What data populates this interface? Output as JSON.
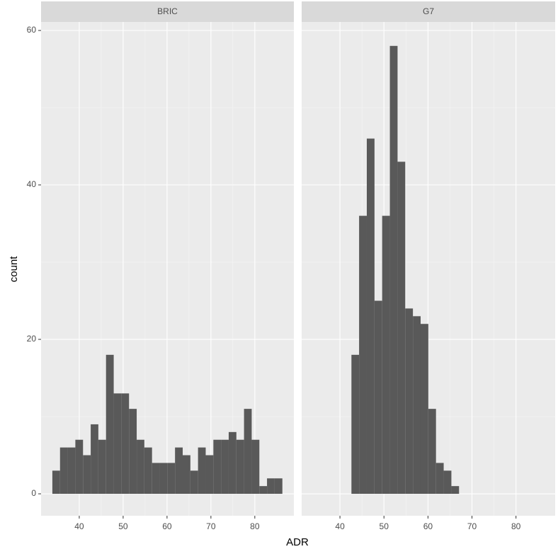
{
  "chart_data": [
    {
      "type": "histogram",
      "title": "BRIC",
      "xlabel": "ADR",
      "ylabel": "count",
      "color": "#595959",
      "grid": true,
      "bins": [
        33.87,
        35.62,
        37.36,
        39.11,
        40.86,
        42.61,
        44.35,
        46.1,
        47.85,
        49.59,
        51.34,
        53.09,
        54.83,
        56.58,
        58.33,
        60.08,
        61.82,
        63.57,
        65.32,
        67.06,
        68.81,
        70.56,
        72.3,
        74.05,
        75.8,
        77.54,
        79.29,
        81.04,
        82.78,
        84.53,
        86.28
      ],
      "values": [
        3,
        6,
        6,
        7,
        5,
        9,
        7,
        18,
        13,
        13,
        11,
        7,
        6,
        4,
        4,
        4,
        6,
        5,
        3,
        6,
        5,
        7,
        7,
        8,
        7,
        11,
        7,
        1,
        2,
        2
      ],
      "xlim": [
        31.3,
        88.9
      ],
      "xticks": [
        40,
        50,
        60,
        70,
        80
      ],
      "ylim": [
        -2.84,
        61.1
      ],
      "yticks": [
        0,
        20,
        40,
        60
      ]
    },
    {
      "type": "histogram",
      "title": "G7",
      "color": "#595959",
      "grid": true,
      "bins": [
        42.61,
        44.35,
        46.1,
        47.85,
        49.59,
        51.34,
        53.09,
        54.83,
        56.58,
        58.33,
        60.08,
        61.82,
        63.57,
        65.32,
        67.06
      ],
      "values": [
        18,
        36,
        46,
        25,
        36,
        58,
        43,
        24,
        23,
        22,
        11,
        4,
        3,
        1
      ],
      "xlim": [
        31.3,
        88.9
      ],
      "xticks": [
        40,
        50,
        60,
        70,
        80
      ],
      "ylim": [
        -2.84,
        61.1
      ]
    }
  ]
}
